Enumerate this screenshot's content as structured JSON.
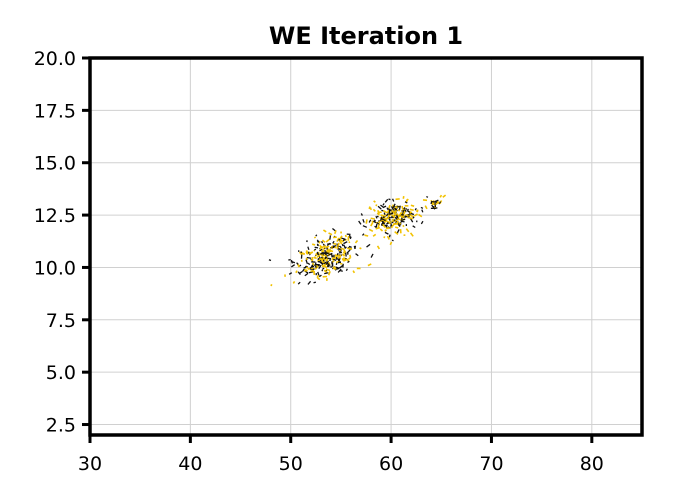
{
  "chart_data": {
    "type": "scatter",
    "title": "WE Iteration 1",
    "xlabel": "",
    "ylabel": "",
    "xlim": [
      30,
      85
    ],
    "ylim": [
      2,
      20
    ],
    "x_ticks": [
      30,
      40,
      50,
      60,
      70,
      80
    ],
    "y_ticks": [
      2.5,
      5.0,
      7.5,
      10.0,
      12.5,
      15.0,
      17.5,
      20.0
    ],
    "x_tick_labels": [
      "30",
      "40",
      "50",
      "60",
      "70",
      "80"
    ],
    "y_tick_labels": [
      "2.5",
      "5.0",
      "7.5",
      "10.0",
      "12.5",
      "15.0",
      "17.5",
      "20.0"
    ],
    "grid": true,
    "legend": "none",
    "colors": {
      "dark": "#111111",
      "gold": "#f2c200",
      "grid": "#d0d0d0",
      "axis": "#000000"
    },
    "clusters": [
      {
        "center": [
          53.5,
          10.5
        ],
        "spread": [
          1.6,
          0.45
        ],
        "count": 320
      },
      {
        "center": [
          60.2,
          12.4
        ],
        "spread": [
          1.4,
          0.38
        ],
        "count": 230
      },
      {
        "center": [
          64.3,
          13.0
        ],
        "spread": [
          0.4,
          0.15
        ],
        "count": 25
      }
    ],
    "density_by_x": [
      {
        "x": 50,
        "count": 10
      },
      {
        "x": 52,
        "count": 90
      },
      {
        "x": 54,
        "count": 120
      },
      {
        "x": 56,
        "count": 60
      },
      {
        "x": 58,
        "count": 55
      },
      {
        "x": 60,
        "count": 110
      },
      {
        "x": 62,
        "count": 60
      },
      {
        "x": 64,
        "count": 25
      }
    ]
  }
}
